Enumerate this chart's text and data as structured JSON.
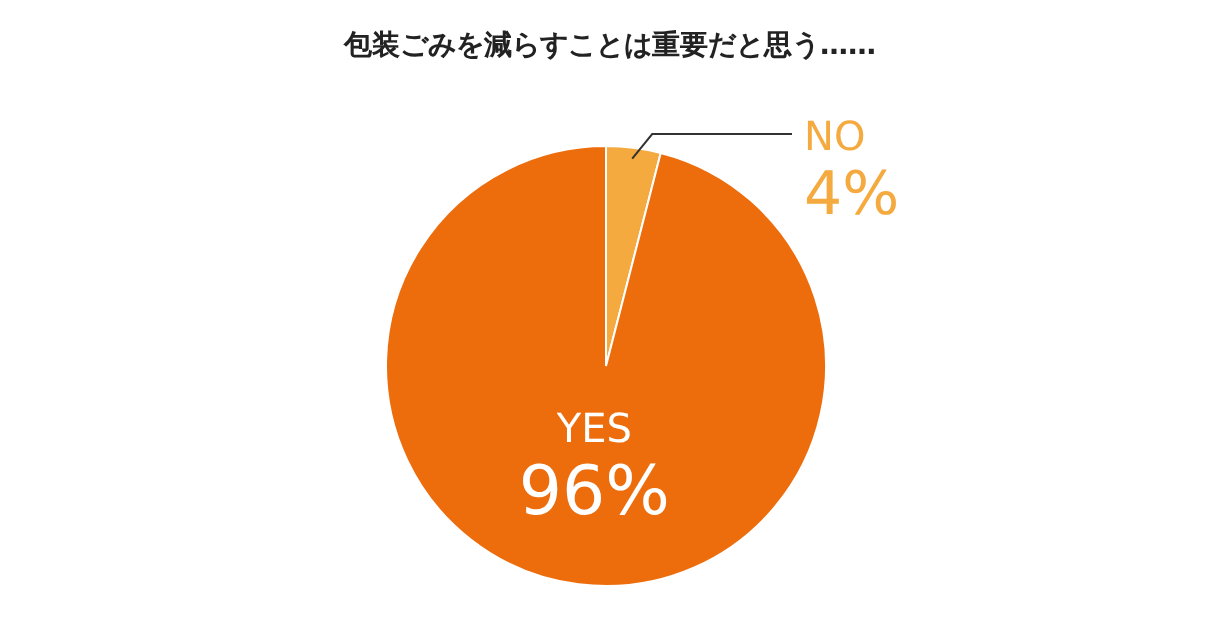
{
  "chart_data": {
    "type": "pie",
    "title": "包装ごみを減らすことは重要だと思う……",
    "categories": [
      "NO",
      "YES"
    ],
    "values": [
      4,
      96
    ],
    "colors": [
      "#f4aa3f",
      "#ed6d0c"
    ],
    "value_labels": [
      "4%",
      "96%"
    ]
  }
}
